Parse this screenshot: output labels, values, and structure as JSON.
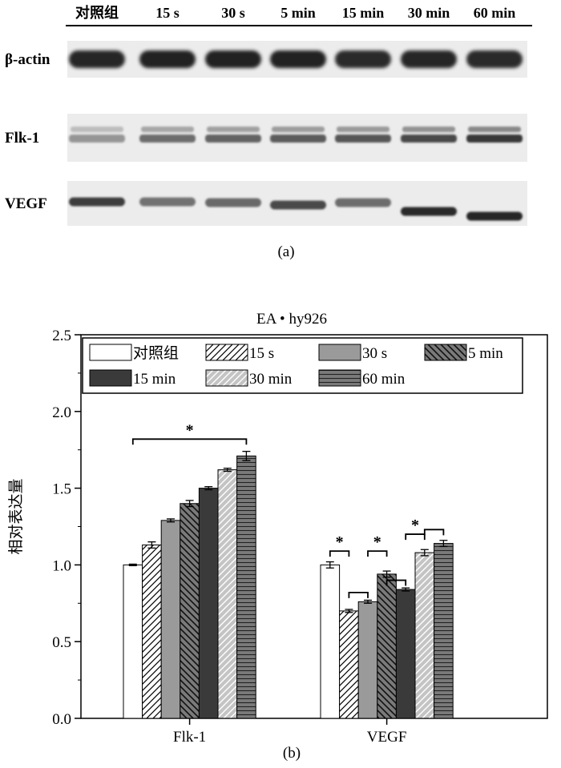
{
  "panel_a": {
    "caption": "(a)",
    "lanes": [
      "对照组",
      "15 s",
      "30 s",
      "5 min",
      "15 min",
      "30 min",
      "60 min"
    ],
    "blots": [
      {
        "label": "β-actin",
        "intensities": [
          0.92,
          0.95,
          0.95,
          0.93,
          0.9,
          0.92,
          0.9
        ],
        "offsets": [
          0,
          0,
          0,
          0,
          0,
          0,
          0
        ]
      },
      {
        "label": "Flk-1",
        "intensities": [
          0.45,
          0.62,
          0.66,
          0.7,
          0.72,
          0.78,
          0.85
        ],
        "offsets": [
          0,
          0,
          0,
          0,
          0,
          0,
          0
        ]
      },
      {
        "label": "VEGF",
        "intensities": [
          0.82,
          0.6,
          0.64,
          0.78,
          0.62,
          0.9,
          0.92
        ],
        "offsets": [
          -2,
          -2,
          -1,
          2,
          -1,
          10,
          16
        ]
      }
    ]
  },
  "chart_data": {
    "type": "bar",
    "title": "EA • hy926",
    "ylabel": "相对表达量",
    "xlabel": "",
    "caption": "(b)",
    "categories": [
      "Flk-1",
      "VEGF"
    ],
    "ylim": [
      0,
      2.5
    ],
    "yticks": [
      "0.0",
      "0.5",
      "1.0",
      "1.5",
      "2.0",
      "2.5"
    ],
    "legend_position": "top",
    "series": [
      {
        "name": "对照组",
        "values": [
          1.0,
          1.0
        ],
        "errors": [
          0.005,
          0.02
        ],
        "pattern": "white"
      },
      {
        "name": "15 s",
        "values": [
          1.13,
          0.7
        ],
        "errors": [
          0.02,
          0.01
        ],
        "pattern": "diag-fwd"
      },
      {
        "name": "30 s",
        "values": [
          1.29,
          0.76
        ],
        "errors": [
          0.01,
          0.01
        ],
        "pattern": "gray"
      },
      {
        "name": "5 min",
        "values": [
          1.4,
          0.94
        ],
        "errors": [
          0.02,
          0.02
        ],
        "pattern": "diag-back"
      },
      {
        "name": "15 min",
        "values": [
          1.5,
          0.84
        ],
        "errors": [
          0.01,
          0.01
        ],
        "pattern": "dark"
      },
      {
        "name": "30 min",
        "values": [
          1.62,
          1.08
        ],
        "errors": [
          0.01,
          0.02
        ],
        "pattern": "diag-fwd-gray"
      },
      {
        "name": "60 min",
        "values": [
          1.71,
          1.14
        ],
        "errors": [
          0.03,
          0.02
        ],
        "pattern": "horizontal"
      }
    ],
    "significance": [
      {
        "group": 0,
        "from": 0,
        "to": 6,
        "y": 1.82,
        "label": "*"
      },
      {
        "group": 1,
        "from": 0,
        "to": 1,
        "y": 1.09,
        "label": "*"
      },
      {
        "group": 1,
        "from": 1,
        "to": 2,
        "y": 0.82,
        "label": ""
      },
      {
        "group": 1,
        "from": 2,
        "to": 3,
        "y": 1.09,
        "label": "*"
      },
      {
        "group": 1,
        "from": 4,
        "to": 5,
        "y": 1.2,
        "label": "*"
      },
      {
        "group": 1,
        "from": 3,
        "to": 4,
        "y": 0.9,
        "label": ""
      },
      {
        "group": 1,
        "from": 5,
        "to": 6,
        "y": 1.23,
        "label": ""
      }
    ],
    "colors": {
      "white": "#ffffff",
      "gray": "#9a9a9a",
      "dark": "#3a3a3a",
      "mid": "#7a7a7a",
      "light": "#c4c4c4",
      "stroke": "#000000"
    }
  }
}
